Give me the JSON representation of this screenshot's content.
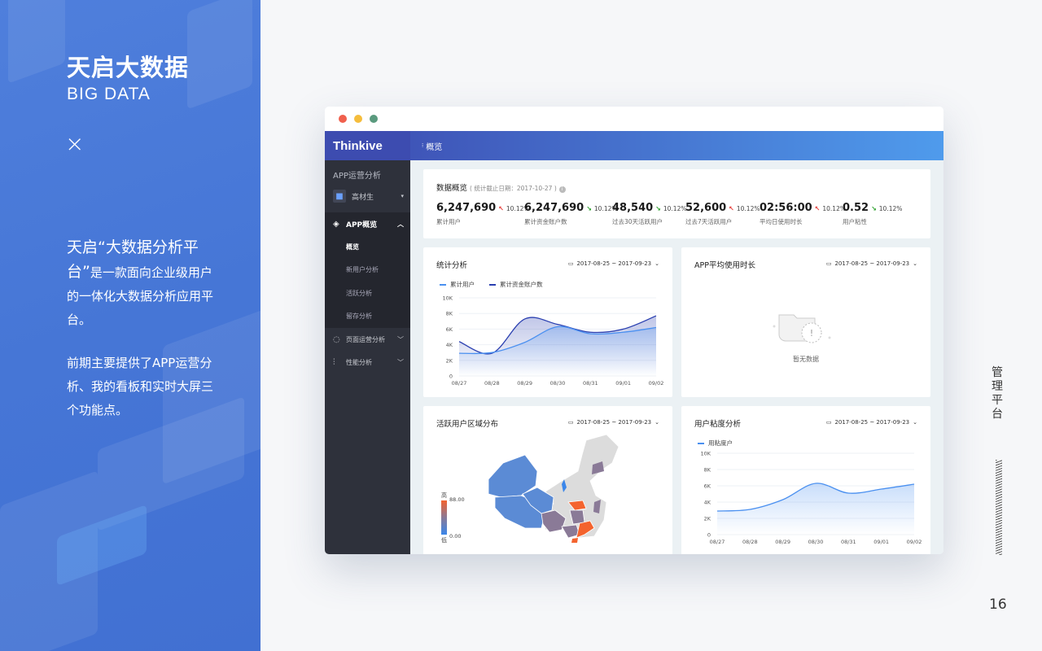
{
  "left_panel": {
    "title": "天启大数据",
    "subtitle": "BIG DATA",
    "cross": "×",
    "para1_big": "天启“大数据分析平台”",
    "para1_rest": "是一款面向企业级用户的一体化大数据分析应用平台。",
    "para2": "前期主要提供了APP运营分析、我的看板和实时大屏三个功能点。"
  },
  "right_rail": {
    "label": "管理平台",
    "page_number": "16"
  },
  "window": {
    "traffic_lights": [
      "#f0604d",
      "#f5bd3c",
      "#5a9a7e"
    ]
  },
  "sidebar": {
    "logo": "Thinkive",
    "section": "APP运营分析",
    "user": "高材生",
    "items": [
      {
        "label": "APP概览",
        "icon": "layers-icon",
        "open": true,
        "children": [
          "概览",
          "新用户分析",
          "活跃分析",
          "留存分析"
        ],
        "active_child": "概览"
      },
      {
        "label": "页面运营分析",
        "icon": "refresh-icon"
      },
      {
        "label": "性能分析",
        "icon": "sliders-icon"
      }
    ]
  },
  "topbar": {
    "breadcrumb": "概览"
  },
  "overview": {
    "title": "数据概览",
    "note": "( 统计截止日期：2017-10-27 )",
    "stats": [
      {
        "value": "6,247,690",
        "trend": "up",
        "change": "10.12%",
        "label": "累计用户"
      },
      {
        "value": "6,247,690",
        "trend": "down",
        "change": "10.12%",
        "label": "累计资金账户数"
      },
      {
        "value": "48,540",
        "trend": "down",
        "change": "10.12%",
        "label": "过去30天活跃用户"
      },
      {
        "value": "52,600",
        "trend": "up",
        "change": "10.12%",
        "label": "过去7天活跃用户"
      },
      {
        "value": "02:56:00",
        "trend": "up",
        "change": "10.12%",
        "label": "平均日使用时长"
      },
      {
        "value": "0.52",
        "trend": "down",
        "change": "10.12%",
        "label": "用户粘性"
      }
    ]
  },
  "date_range": "2017-08-25 ~ 2017-09-23",
  "cards": {
    "stats": "统计分析",
    "duration": "APP平均使用时长",
    "region": "活跃用户区域分布",
    "stickiness": "用户粘度分析"
  },
  "empty_state": "暂无数据",
  "map": {
    "legend_high": "高",
    "legend_low": "低",
    "max": "88.00",
    "min": "0.00",
    "colors": {
      "high": "#f4632e",
      "mid": "#8a7a97",
      "low": "#5b8bd5",
      "none": "#dcdcdc"
    }
  },
  "chart_data": [
    {
      "type": "area",
      "title": "统计分析",
      "categories": [
        "08/27",
        "08/28",
        "08/29",
        "08/30",
        "08/31",
        "09/01",
        "09/02"
      ],
      "yticks": [
        "0",
        "2K",
        "4K",
        "6K",
        "8K",
        "10K"
      ],
      "ylim": [
        0,
        10000
      ],
      "legend": "top-left",
      "grid": true,
      "series": [
        {
          "name": "累计用户",
          "color": "#4a90f0",
          "values": [
            2900,
            3000,
            4300,
            6300,
            5400,
            5600,
            6200
          ]
        },
        {
          "name": "累计资金账户数",
          "color": "#2a3fb0",
          "values": [
            4400,
            2900,
            7300,
            6600,
            5600,
            6000,
            7700
          ]
        }
      ]
    },
    {
      "type": "area",
      "title": "用户粘度分析",
      "categories": [
        "08/27",
        "08/28",
        "08/29",
        "08/30",
        "08/31",
        "09/01",
        "09/02"
      ],
      "yticks": [
        "0",
        "2K",
        "4K",
        "6K",
        "8K",
        "10K"
      ],
      "ylim": [
        0,
        10000
      ],
      "legend": "top-left",
      "grid": true,
      "series": [
        {
          "name": "用粘度户",
          "color": "#4a90f0",
          "values": [
            2900,
            3100,
            4300,
            6300,
            5100,
            5600,
            6200
          ]
        }
      ]
    }
  ]
}
